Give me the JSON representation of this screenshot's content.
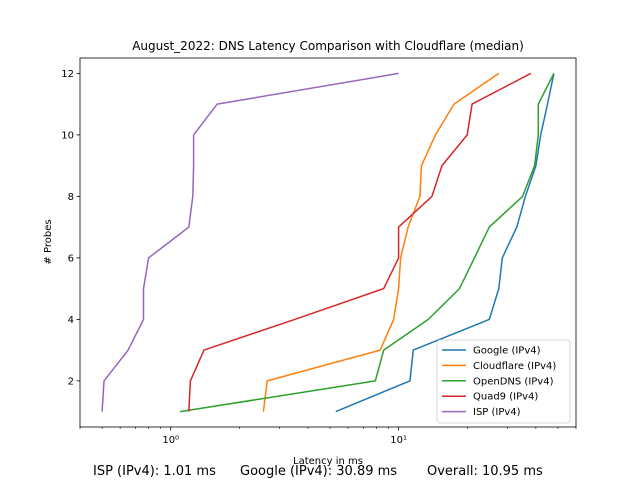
{
  "chart_data": {
    "type": "line",
    "title": "August_2022: DNS Latency Comparison with Cloudflare (median)",
    "xlabel": "Latency in ms",
    "ylabel": "# Probes",
    "x_scale": "log",
    "xlim": [
      0.4,
      60
    ],
    "ylim": [
      0.5,
      12.5
    ],
    "x_ticks": [
      {
        "value": 1,
        "label": "10⁰"
      },
      {
        "value": 10,
        "label": "10¹"
      }
    ],
    "y_ticks": [
      2,
      4,
      6,
      8,
      10,
      12
    ],
    "grid": false,
    "legend_position": "bottom-right",
    "series": [
      {
        "name": "Google (IPv4)",
        "color": "#1f77b4",
        "points": [
          [
            5.3,
            1
          ],
          [
            11.2,
            2
          ],
          [
            11.6,
            3
          ],
          [
            25,
            4
          ],
          [
            27.5,
            5
          ],
          [
            28.5,
            6
          ],
          [
            33,
            7
          ],
          [
            36,
            8
          ],
          [
            40,
            9
          ],
          [
            42,
            10
          ],
          [
            45,
            11
          ],
          [
            48,
            12
          ]
        ]
      },
      {
        "name": "Cloudflare (IPv4)",
        "color": "#ff7f0e",
        "points": [
          [
            2.55,
            1
          ],
          [
            2.65,
            2
          ],
          [
            8.3,
            3
          ],
          [
            9.5,
            4
          ],
          [
            10,
            5
          ],
          [
            10.2,
            6
          ],
          [
            11,
            7
          ],
          [
            12.4,
            8
          ],
          [
            12.6,
            9
          ],
          [
            14.5,
            10
          ],
          [
            17.5,
            11
          ],
          [
            27.5,
            12
          ]
        ]
      },
      {
        "name": "OpenDNS (IPv4)",
        "color": "#2ca02c",
        "points": [
          [
            1.1,
            1
          ],
          [
            7.9,
            2
          ],
          [
            8.6,
            3
          ],
          [
            13.5,
            4
          ],
          [
            18.5,
            5
          ],
          [
            21.5,
            6
          ],
          [
            25,
            7
          ],
          [
            35,
            8
          ],
          [
            39.5,
            9
          ],
          [
            41,
            10
          ],
          [
            41,
            11
          ],
          [
            48,
            12
          ]
        ]
      },
      {
        "name": "Quad9 (IPv4)",
        "color": "#d62728",
        "points": [
          [
            1.2,
            1
          ],
          [
            1.22,
            2
          ],
          [
            1.4,
            3
          ],
          [
            3.5,
            4
          ],
          [
            8.6,
            5
          ],
          [
            10,
            6
          ],
          [
            10,
            7
          ],
          [
            14,
            8
          ],
          [
            15.5,
            9
          ],
          [
            20,
            10
          ],
          [
            21,
            11
          ],
          [
            38,
            12
          ]
        ]
      },
      {
        "name": "ISP (IPv4)",
        "color": "#9467bd",
        "points": [
          [
            0.5,
            1
          ],
          [
            0.51,
            2
          ],
          [
            0.65,
            3
          ],
          [
            0.76,
            4
          ],
          [
            0.76,
            5
          ],
          [
            0.8,
            6
          ],
          [
            1.2,
            7
          ],
          [
            1.25,
            8
          ],
          [
            1.26,
            9
          ],
          [
            1.26,
            10
          ],
          [
            1.6,
            11
          ],
          [
            10,
            12
          ]
        ]
      }
    ]
  },
  "footer": {
    "isp": "ISP (IPv4): 1.01 ms",
    "google": "Google (IPv4): 30.89 ms",
    "overall": "Overall: 10.95 ms"
  }
}
